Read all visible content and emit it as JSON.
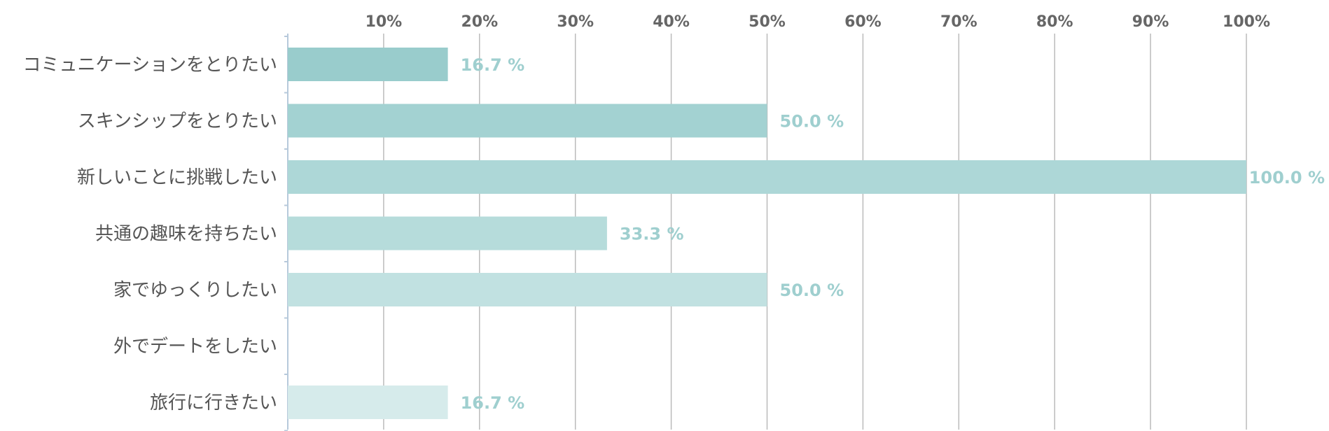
{
  "chart_data": {
    "type": "bar",
    "orientation": "horizontal",
    "categories": [
      "コミュニケーションをとりたい",
      "スキンシップをとりたい",
      "新しいことに挑戦したい",
      "共通の趣味を持ちたい",
      "家でゆっくりしたい",
      "外でデートをしたい",
      "旅行に行きたい"
    ],
    "values": [
      16.7,
      50.0,
      100.0,
      33.3,
      50.0,
      0,
      16.7
    ],
    "value_labels": [
      "16.7 %",
      "50.0 %",
      "100.0 %",
      "33.3 %",
      "50.0 %",
      "",
      "16.7 %"
    ],
    "xlim": [
      0,
      100
    ],
    "x_ticks": [
      10,
      20,
      30,
      40,
      50,
      60,
      70,
      80,
      90,
      100
    ],
    "x_tick_labels": [
      "10%",
      "20%",
      "30%",
      "40%",
      "50%",
      "60%",
      "70%",
      "80%",
      "90%",
      "100%"
    ],
    "x_axis_position": "top",
    "grid": true,
    "legend": false,
    "title": "",
    "xlabel": "",
    "ylabel": "",
    "colors": {
      "bars": [
        "#99cccc",
        "#a3d2d2",
        "#add7d7",
        "#b6dcdb",
        "#c1e1e1",
        "#cce6e6",
        "#d6ebeb"
      ],
      "value_label": "#9fcfcf",
      "grid": "#bbbbbb",
      "axis": "#b7c9db",
      "tick_label": "#666666",
      "category_label": "#555555"
    }
  }
}
